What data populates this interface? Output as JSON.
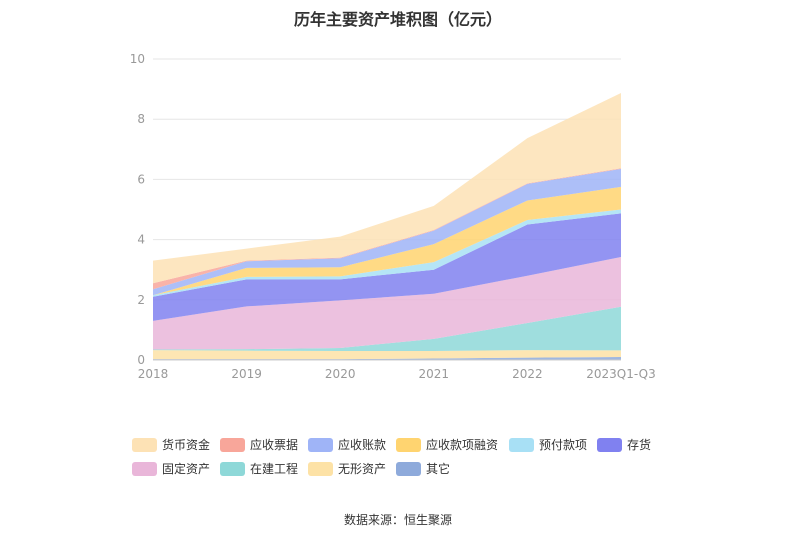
{
  "chart_data": {
    "type": "area",
    "stacked": true,
    "title": "历年主要资产堆积图（亿元）",
    "categories": [
      "2018",
      "2019",
      "2020",
      "2021",
      "2022",
      "2023Q1-Q3"
    ],
    "ylim": [
      0,
      10
    ],
    "yticks": [
      "0",
      "2",
      "4",
      "6",
      "8",
      "10"
    ],
    "grid": true,
    "legend_position": "bottom",
    "series": [
      {
        "name": "其它",
        "color": "#8eaadb",
        "values": [
          0.03,
          0.03,
          0.03,
          0.05,
          0.08,
          0.1
        ]
      },
      {
        "name": "无形资产",
        "color": "#fde2a6",
        "values": [
          0.3,
          0.28,
          0.27,
          0.25,
          0.25,
          0.22
        ]
      },
      {
        "name": "在建工程",
        "color": "#8ed8d8",
        "values": [
          0.02,
          0.05,
          0.1,
          0.4,
          0.9,
          1.45
        ]
      },
      {
        "name": "固定资产",
        "color": "#e9b6d9",
        "values": [
          0.95,
          1.42,
          1.58,
          1.5,
          1.57,
          1.65
        ]
      },
      {
        "name": "存货",
        "color": "#8081f0",
        "values": [
          0.8,
          0.9,
          0.7,
          0.8,
          1.7,
          1.45
        ]
      },
      {
        "name": "预付款项",
        "color": "#a8e0f5",
        "values": [
          0.05,
          0.08,
          0.1,
          0.25,
          0.15,
          0.13
        ]
      },
      {
        "name": "应收款项融资",
        "color": "#ffd470",
        "values": [
          0.0,
          0.3,
          0.3,
          0.6,
          0.65,
          0.75
        ]
      },
      {
        "name": "应收账款",
        "color": "#9fb4f7",
        "values": [
          0.2,
          0.22,
          0.3,
          0.45,
          0.55,
          0.6
        ]
      },
      {
        "name": "应收票据",
        "color": "#f8a69a",
        "values": [
          0.2,
          0.02,
          0.02,
          0.02,
          0.02,
          0.02
        ]
      },
      {
        "name": "货币资金",
        "color": "#fde2b5",
        "values": [
          0.75,
          0.4,
          0.7,
          0.8,
          1.5,
          2.5
        ]
      }
    ],
    "legend_order": [
      "货币资金",
      "应收票据",
      "应收账款",
      "应收款项融资",
      "预付款项",
      "存货",
      "固定资产",
      "在建工程",
      "无形资产",
      "其它"
    ]
  },
  "source_text": "数据来源：恒生聚源"
}
